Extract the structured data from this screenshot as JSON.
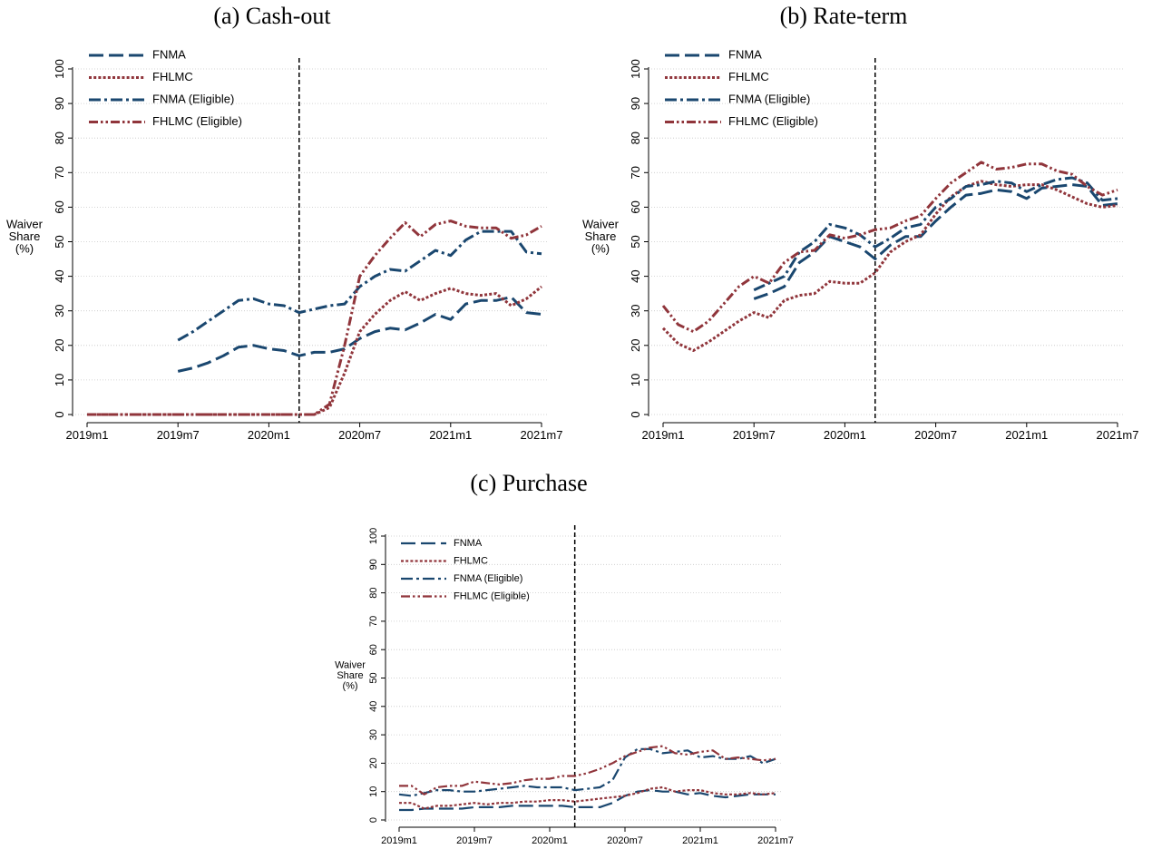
{
  "chart_data": [
    {
      "type": "line",
      "title": "(a)  Cash-out",
      "ylabel": "Waiver Share (%)",
      "categories": [
        "2019m1",
        null,
        null,
        null,
        null,
        null,
        "2019m7",
        null,
        null,
        null,
        null,
        null,
        "2020m1",
        null,
        null,
        null,
        null,
        null,
        "2020m7",
        null,
        null,
        null,
        null,
        null,
        "2021m1",
        null,
        null,
        null,
        null,
        null,
        "2021m7"
      ],
      "ylim": [
        0,
        100
      ],
      "yticks": [
        0,
        10,
        20,
        30,
        40,
        50,
        60,
        70,
        80,
        90,
        100
      ],
      "grid": true,
      "legend": "top-left",
      "vline_index": 14,
      "series": [
        {
          "name": "FNMA",
          "color": "#1a476f",
          "dash": "long-dash",
          "values": [
            null,
            null,
            null,
            null,
            null,
            null,
            12.5,
            13.5,
            15,
            17,
            19.5,
            20,
            19,
            18.5,
            17,
            18,
            18,
            19,
            22,
            24,
            25,
            24.5,
            26.5,
            29,
            27.5,
            32,
            33,
            33,
            34,
            29.5,
            29
          ]
        },
        {
          "name": "FHLMC",
          "color": "#90353b",
          "dash": "dot",
          "values": [
            0,
            0,
            0,
            0,
            0,
            0,
            0,
            0,
            0,
            0,
            0,
            0,
            0,
            0,
            0,
            0,
            2,
            12,
            24,
            29,
            33,
            35.5,
            33,
            35,
            36.5,
            35,
            34.5,
            35,
            31.5,
            33.5,
            37
          ]
        },
        {
          "name": "FNMA (Eligible)",
          "color": "#1a476f",
          "dash": "dash-dot",
          "values": [
            null,
            null,
            null,
            null,
            null,
            null,
            21.5,
            24,
            27,
            30,
            33,
            33.5,
            32,
            31.5,
            29.5,
            30.5,
            31.5,
            32,
            37,
            40,
            42,
            41.5,
            44.5,
            47.5,
            46,
            50.5,
            53,
            53,
            53,
            47,
            46.5
          ]
        },
        {
          "name": "FHLMC (Eligible)",
          "color": "#90353b",
          "dash": "dash-dot-dot",
          "values": [
            0,
            0,
            0,
            0,
            0,
            0,
            0,
            0,
            0,
            0,
            0,
            0,
            0,
            0,
            0,
            0,
            3,
            20,
            40,
            46,
            51,
            55.5,
            51.5,
            55,
            56,
            54.5,
            54,
            54,
            51,
            52,
            54.5
          ]
        }
      ]
    },
    {
      "type": "line",
      "title": "(b)  Rate-term",
      "ylabel": "Waiver Share (%)",
      "categories": [
        "2019m1",
        null,
        null,
        null,
        null,
        null,
        "2019m7",
        null,
        null,
        null,
        null,
        null,
        "2020m1",
        null,
        null,
        null,
        null,
        null,
        "2020m7",
        null,
        null,
        null,
        null,
        null,
        "2021m1",
        null,
        null,
        null,
        null,
        null,
        "2021m7"
      ],
      "ylim": [
        0,
        100
      ],
      "yticks": [
        0,
        10,
        20,
        30,
        40,
        50,
        60,
        70,
        80,
        90,
        100
      ],
      "grid": true,
      "legend": "top-left",
      "vline_index": 14,
      "series": [
        {
          "name": "FNMA",
          "color": "#1a476f",
          "dash": "long-dash",
          "values": [
            null,
            null,
            null,
            null,
            null,
            null,
            33.5,
            35,
            37,
            44,
            47,
            51.5,
            50,
            48.5,
            45,
            49,
            51.5,
            51.5,
            56,
            60,
            63.5,
            64,
            65,
            64.5,
            62.5,
            65.5,
            66,
            66.5,
            66,
            60.5,
            61
          ]
        },
        {
          "name": "FHLMC",
          "color": "#90353b",
          "dash": "dot",
          "values": [
            25,
            20.5,
            18.5,
            21,
            24,
            27,
            29.5,
            28,
            33,
            34.5,
            35,
            38.5,
            38,
            38,
            41,
            47,
            50,
            52,
            58,
            63,
            66,
            67.5,
            66.5,
            66,
            66.5,
            66.5,
            65,
            63,
            61,
            60,
            60.5
          ]
        },
        {
          "name": "FNMA (Eligible)",
          "color": "#1a476f",
          "dash": "dash-dot",
          "values": [
            null,
            null,
            null,
            null,
            null,
            null,
            36,
            38,
            40,
            47,
            50,
            55,
            54,
            52,
            48.5,
            51,
            54,
            55,
            60,
            62.5,
            66,
            66.5,
            67.5,
            67,
            64.5,
            66.5,
            68,
            68.5,
            67,
            62,
            62.5
          ]
        },
        {
          "name": "FHLMC (Eligible)",
          "color": "#90353b",
          "dash": "dash-dot-dot",
          "values": [
            31.5,
            26,
            24,
            27,
            32,
            37,
            40,
            38,
            44,
            47,
            47.5,
            52,
            51,
            52,
            53.5,
            54,
            56,
            57.5,
            62.5,
            67,
            70,
            73,
            71,
            71.5,
            72.5,
            72.5,
            70.5,
            69.5,
            66,
            63.5,
            65
          ]
        }
      ]
    },
    {
      "type": "line",
      "title": "(c)  Purchase",
      "ylabel": "Waiver Share (%)",
      "categories": [
        "2019m1",
        null,
        null,
        null,
        null,
        null,
        "2019m7",
        null,
        null,
        null,
        null,
        null,
        "2020m1",
        null,
        null,
        null,
        null,
        null,
        "2020m7",
        null,
        null,
        null,
        null,
        null,
        "2021m1",
        null,
        null,
        null,
        null,
        null,
        "2021m7"
      ],
      "ylim": [
        0,
        100
      ],
      "yticks": [
        0,
        10,
        20,
        30,
        40,
        50,
        60,
        70,
        80,
        90,
        100
      ],
      "grid": true,
      "legend": "top-left",
      "vline_index": 14,
      "series": [
        {
          "name": "FNMA",
          "color": "#1a476f",
          "dash": "long-dash",
          "values": [
            3.5,
            3.5,
            4,
            4,
            4,
            4,
            4.5,
            4.5,
            4.5,
            5,
            5,
            5,
            5,
            5,
            4.5,
            4.5,
            4.5,
            6,
            8.5,
            10,
            10.5,
            10,
            10,
            9,
            9.5,
            8.5,
            8,
            8.5,
            9,
            9,
            9
          ]
        },
        {
          "name": "FHLMC",
          "color": "#90353b",
          "dash": "dot",
          "values": [
            6,
            6,
            4,
            5,
            5,
            5.5,
            6,
            5.5,
            6,
            6,
            6.5,
            6.5,
            7,
            7,
            6.5,
            7,
            7.5,
            8,
            8.5,
            9.5,
            11,
            11.5,
            10,
            10.5,
            10.5,
            9.5,
            9,
            9,
            9.5,
            9,
            9.5
          ]
        },
        {
          "name": "FNMA (Eligible)",
          "color": "#1a476f",
          "dash": "dash-dot",
          "values": [
            9,
            8.5,
            9.5,
            10.5,
            10.5,
            10,
            10,
            10.5,
            11,
            11.5,
            12,
            11.5,
            11.5,
            11.5,
            10.5,
            11,
            11.5,
            14,
            22,
            25,
            25,
            23.5,
            24,
            24.5,
            22,
            22.5,
            21.5,
            21.5,
            22.5,
            20,
            21.5
          ]
        },
        {
          "name": "FHLMC (Eligible)",
          "color": "#90353b",
          "dash": "dash-dot-dot",
          "values": [
            12,
            12,
            9,
            11.5,
            12,
            12,
            13.5,
            13,
            12.5,
            13,
            14,
            14.5,
            14.5,
            15.5,
            15.5,
            16.5,
            18,
            20,
            22.5,
            24,
            25.5,
            26,
            23.5,
            23,
            24,
            24.5,
            21.5,
            22,
            21.5,
            21,
            21.5
          ]
        }
      ]
    }
  ]
}
